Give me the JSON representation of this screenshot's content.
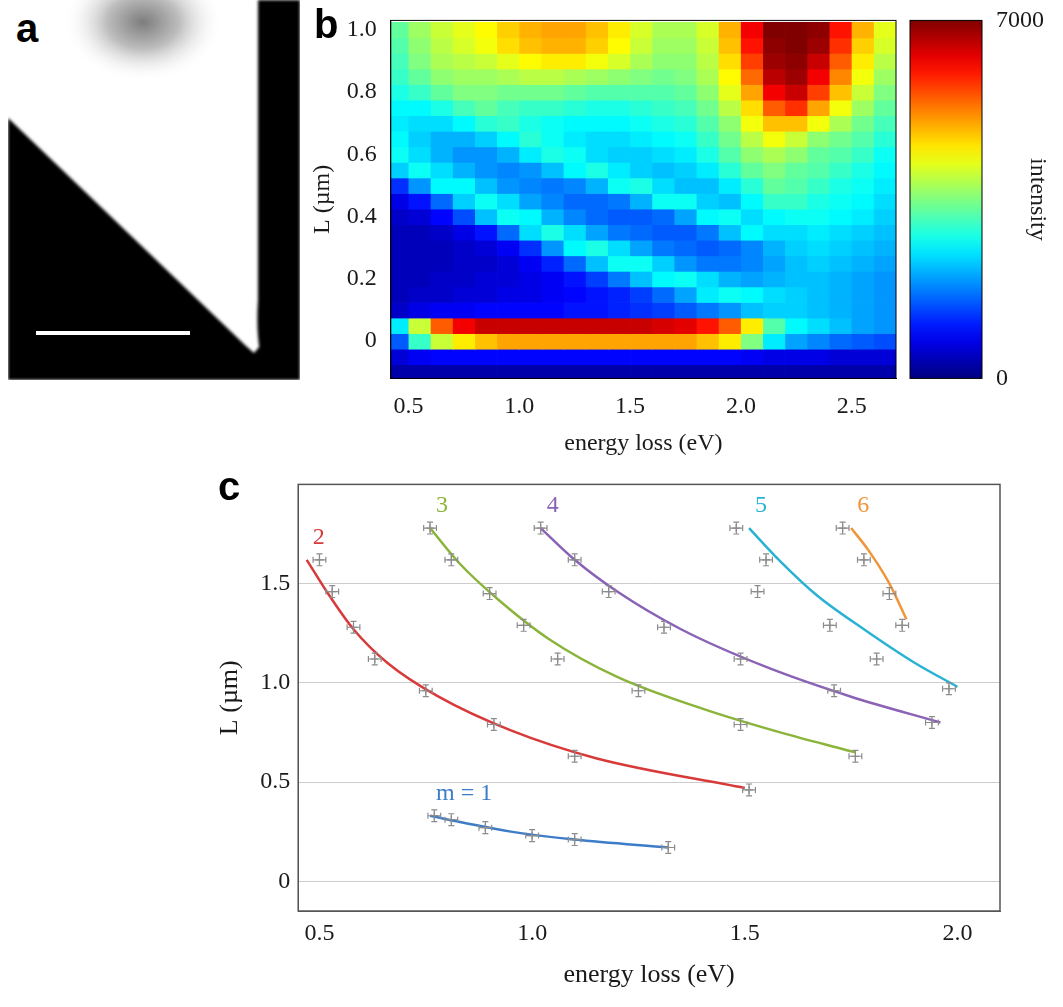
{
  "chart_data": [
    {
      "panel": "a",
      "type": "image"
    },
    {
      "panel": "b",
      "type": "heatmap",
      "x_label": "energy loss (eV)",
      "y_label": "L (µm)",
      "xlim": [
        0.42,
        2.7
      ],
      "ylim": [
        -0.12,
        1.03
      ],
      "xticks": [
        0.5,
        {
          "value": 1,
          "label": "1.0"
        },
        1.5,
        {
          "value": 2,
          "label": "2.0"
        },
        2.5
      ],
      "yticks": [
        0,
        0.2,
        0.4,
        0.6,
        0.8,
        {
          "value": 1,
          "label": "1.0"
        }
      ],
      "grid": false,
      "x": [
        0.45,
        0.55,
        0.65,
        0.75,
        0.85,
        0.95,
        1.05,
        1.15,
        1.25,
        1.35,
        1.45,
        1.55,
        1.65,
        1.75,
        1.85,
        1.95,
        2.05,
        2.15,
        2.25,
        2.35,
        2.45,
        2.55,
        2.65
      ],
      "y": [
        -0.1,
        -0.05,
        0,
        0.05,
        0.1,
        0.15,
        0.2,
        0.25,
        0.3,
        0.35,
        0.4,
        0.45,
        0.5,
        0.55,
        0.6,
        0.65,
        0.7,
        0.75,
        0.8,
        0.85,
        0.9,
        0.95,
        1
      ],
      "cells": [
        [
          300,
          300,
          300,
          300,
          300,
          300,
          300,
          300,
          300,
          300,
          300,
          300,
          300,
          300,
          300,
          300,
          300,
          300,
          300,
          300,
          300,
          300,
          300
        ],
        [
          600,
          800,
          900,
          900,
          900,
          900,
          900,
          900,
          900,
          900,
          900,
          900,
          900,
          900,
          900,
          900,
          800,
          700,
          700,
          700,
          600,
          600,
          600
        ],
        [
          1500,
          3000,
          4000,
          4500,
          4800,
          5000,
          5000,
          5000,
          5000,
          5000,
          5000,
          5000,
          5000,
          5000,
          4800,
          4500,
          3500,
          2500,
          2000,
          1800,
          1600,
          1500,
          1400
        ],
        [
          2500,
          4000,
          5500,
          6200,
          6500,
          6500,
          6500,
          6500,
          6500,
          6500,
          6500,
          6500,
          6400,
          6300,
          6000,
          5500,
          4500,
          3200,
          2600,
          2400,
          2200,
          2000,
          1900
        ],
        [
          500,
          700,
          800,
          800,
          900,
          900,
          900,
          900,
          1000,
          1000,
          1100,
          1200,
          1300,
          1500,
          1700,
          1900,
          2200,
          2300,
          2300,
          2200,
          2100,
          2000,
          1900
        ],
        [
          400,
          500,
          500,
          600,
          600,
          700,
          700,
          800,
          900,
          1000,
          1100,
          1300,
          1600,
          2000,
          2500,
          2700,
          2600,
          2400,
          2300,
          2200,
          2100,
          2000,
          1900
        ],
        [
          400,
          400,
          500,
          500,
          600,
          600,
          700,
          800,
          1000,
          1300,
          1700,
          2200,
          2600,
          2700,
          2400,
          2100,
          2000,
          2100,
          2200,
          2200,
          2100,
          2000,
          1900
        ],
        [
          400,
          400,
          400,
          500,
          500,
          600,
          800,
          1100,
          1600,
          2200,
          2700,
          2700,
          2300,
          1900,
          1700,
          1700,
          1800,
          2000,
          2200,
          2300,
          2200,
          2100,
          2000
        ],
        [
          400,
          400,
          400,
          500,
          600,
          800,
          1200,
          1900,
          2600,
          2800,
          2400,
          2000,
          1700,
          1600,
          1500,
          1600,
          1800,
          2100,
          2300,
          2400,
          2300,
          2200,
          2100
        ],
        [
          400,
          400,
          500,
          700,
          1000,
          1600,
          2400,
          2800,
          2400,
          2000,
          1700,
          1600,
          1500,
          1500,
          1700,
          2200,
          2600,
          2400,
          2400,
          2500,
          2400,
          2300,
          2200
        ],
        [
          500,
          600,
          900,
          1400,
          2200,
          2700,
          2600,
          2100,
          1800,
          1600,
          1500,
          1500,
          1600,
          2000,
          2600,
          2700,
          2400,
          2600,
          2700,
          2700,
          2600,
          2500,
          2300
        ],
        [
          700,
          1000,
          1600,
          2300,
          2700,
          2400,
          2000,
          1800,
          1600,
          1600,
          1700,
          2100,
          2700,
          2700,
          2300,
          2200,
          2600,
          3000,
          3000,
          2800,
          2700,
          2600,
          2400
        ],
        [
          1200,
          1900,
          2600,
          2600,
          2200,
          1900,
          1800,
          1700,
          1800,
          2100,
          2700,
          2800,
          2400,
          2200,
          2200,
          2500,
          2900,
          3300,
          3200,
          3000,
          2800,
          2700,
          2500
        ],
        [
          2300,
          2700,
          2400,
          2100,
          1900,
          1800,
          1900,
          2200,
          2600,
          2800,
          2500,
          2300,
          2200,
          2300,
          2500,
          2900,
          3300,
          3500,
          3300,
          3200,
          3000,
          2800,
          2600
        ],
        [
          2700,
          2400,
          2100,
          1900,
          1900,
          2100,
          2500,
          2800,
          2700,
          2400,
          2300,
          2300,
          2400,
          2500,
          2800,
          3200,
          3600,
          3800,
          3600,
          3300,
          3200,
          3000,
          2700
        ],
        [
          2600,
          2300,
          2100,
          2100,
          2300,
          2600,
          2900,
          2700,
          2500,
          2400,
          2400,
          2500,
          2600,
          2700,
          3000,
          3400,
          3900,
          4300,
          4000,
          3600,
          3400,
          3200,
          2900
        ],
        [
          2500,
          2400,
          2400,
          2600,
          2900,
          3000,
          2800,
          2700,
          2600,
          2600,
          2600,
          2700,
          2800,
          2900,
          3200,
          3600,
          4300,
          4800,
          4800,
          4300,
          3800,
          3400,
          3100
        ],
        [
          2600,
          2600,
          2800,
          3100,
          3300,
          3100,
          3000,
          3000,
          2900,
          2800,
          2800,
          2900,
          3000,
          3100,
          3400,
          3900,
          4600,
          5500,
          5800,
          5000,
          4300,
          3700,
          3300
        ],
        [
          2800,
          3000,
          3300,
          3500,
          3500,
          3400,
          3400,
          3400,
          3300,
          3200,
          3200,
          3200,
          3200,
          3300,
          3600,
          4200,
          5000,
          6200,
          6500,
          5700,
          4800,
          4000,
          3500
        ],
        [
          3000,
          3300,
          3600,
          3700,
          3700,
          3800,
          3900,
          3900,
          3800,
          3700,
          3600,
          3500,
          3400,
          3500,
          3800,
          4400,
          5400,
          6600,
          6800,
          6200,
          5200,
          4300,
          3700
        ],
        [
          3100,
          3500,
          3800,
          3900,
          4000,
          4200,
          4400,
          4500,
          4500,
          4300,
          4100,
          3800,
          3600,
          3600,
          3900,
          4600,
          5700,
          6800,
          6900,
          6500,
          5500,
          4500,
          3900
        ],
        [
          3200,
          3600,
          3900,
          4100,
          4300,
          4600,
          4800,
          4900,
          4900,
          4700,
          4400,
          4000,
          3700,
          3700,
          4000,
          4800,
          6000,
          6900,
          7000,
          6800,
          5800,
          4700,
          4100
        ],
        [
          3300,
          3700,
          4000,
          4200,
          4400,
          4700,
          4900,
          5000,
          5000,
          4800,
          4500,
          4100,
          3800,
          3800,
          4100,
          4900,
          6200,
          7000,
          7000,
          6900,
          6000,
          4900,
          4200
        ]
      ],
      "colorbar": {
        "label": "intensity",
        "range": [
          0,
          7000
        ],
        "ticks": [
          0,
          7000
        ]
      }
    },
    {
      "panel": "c",
      "type": "line",
      "x_label": "energy loss (eV)",
      "y_label": "L (µm)",
      "xlim": [
        0.45,
        2.1
      ],
      "ylim": [
        -0.15,
        2.0
      ],
      "xticks": [
        0.5,
        {
          "value": 1,
          "label": "1.0"
        },
        1.5,
        {
          "value": 2,
          "label": "2.0"
        }
      ],
      "yticks": [
        0,
        0.5,
        {
          "value": 1,
          "label": "1.0"
        },
        1.5
      ],
      "grid": "y",
      "marker": "cross",
      "line_style": "solid",
      "series": [
        {
          "name": "m = 1",
          "color": "#3d7cc9",
          "x": [
            0.77,
            0.81,
            0.89,
            1.0,
            1.1,
            1.32
          ],
          "values": [
            0.33,
            0.31,
            0.27,
            0.23,
            0.21,
            0.17
          ],
          "x_error": 0.015,
          "y_error": 0.03,
          "fit_x": [
            0.76,
            0.85,
            0.95,
            1.1,
            1.32
          ],
          "fit_values": [
            0.33,
            0.29,
            0.25,
            0.21,
            0.17
          ]
        },
        {
          "name": "2",
          "color": "#d83a3a",
          "x": [
            0.5,
            0.53,
            0.58,
            0.63,
            0.75,
            0.91,
            1.1,
            1.51
          ],
          "values": [
            1.62,
            1.46,
            1.28,
            1.12,
            0.96,
            0.79,
            0.63,
            0.46
          ],
          "x_error": 0.015,
          "y_error": 0.03,
          "fit_x": [
            0.47,
            0.52,
            0.58,
            0.66,
            0.78,
            0.95,
            1.15,
            1.5
          ],
          "fit_values": [
            1.62,
            1.45,
            1.27,
            1.1,
            0.93,
            0.76,
            0.62,
            0.47
          ]
        },
        {
          "name": "3",
          "color": "#8ab43a",
          "x": [
            0.76,
            0.81,
            0.9,
            0.98,
            1.06,
            1.25,
            1.49,
            1.76
          ],
          "values": [
            1.78,
            1.62,
            1.45,
            1.29,
            1.12,
            0.96,
            0.79,
            0.63
          ],
          "x_error": 0.015,
          "y_error": 0.03,
          "fit_x": [
            0.76,
            0.83,
            0.92,
            1.04,
            1.2,
            1.4,
            1.6,
            1.76
          ],
          "fit_values": [
            1.78,
            1.6,
            1.42,
            1.22,
            1.03,
            0.87,
            0.74,
            0.65
          ]
        },
        {
          "name": "4",
          "color": "#8a62b6",
          "x": [
            1.02,
            1.1,
            1.18,
            1.31,
            1.49,
            1.71,
            1.94
          ],
          "values": [
            1.78,
            1.62,
            1.46,
            1.28,
            1.12,
            0.96,
            0.8
          ],
          "x_error": 0.015,
          "y_error": 0.03,
          "fit_x": [
            1.02,
            1.1,
            1.2,
            1.35,
            1.55,
            1.75,
            1.96
          ],
          "fit_values": [
            1.78,
            1.62,
            1.46,
            1.27,
            1.08,
            0.93,
            0.8
          ]
        },
        {
          "name": "5",
          "color": "#2ab2d4",
          "x": [
            1.48,
            1.55,
            1.53,
            1.7,
            1.81,
            1.98
          ],
          "values": [
            1.78,
            1.62,
            1.46,
            1.29,
            1.12,
            0.97
          ],
          "x_error": 0.015,
          "y_error": 0.03,
          "fit_x": [
            1.51,
            1.58,
            1.67,
            1.78,
            1.9,
            2.0
          ],
          "fit_values": [
            1.78,
            1.62,
            1.44,
            1.27,
            1.1,
            0.98
          ]
        },
        {
          "name": "6",
          "color": "#f0953a",
          "x": [
            1.73,
            1.78,
            1.84,
            1.87
          ],
          "values": [
            1.78,
            1.62,
            1.45,
            1.29
          ],
          "x_error": 0.015,
          "y_error": 0.03,
          "fit_x": [
            1.75,
            1.79,
            1.84,
            1.88
          ],
          "fit_values": [
            1.78,
            1.67,
            1.5,
            1.32
          ]
        }
      ]
    }
  ]
}
